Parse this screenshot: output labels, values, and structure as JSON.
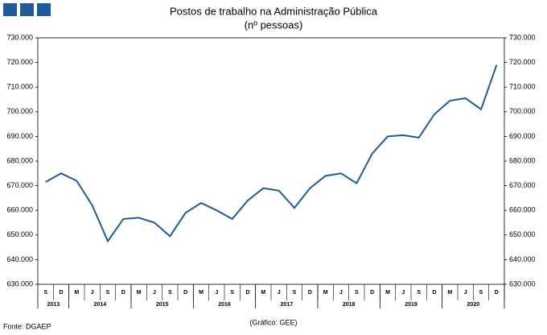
{
  "chart_data": {
    "type": "line",
    "title": "Postos de trabalho na Administração Pública",
    "subtitle": "(nº pessoas)",
    "categories": [
      "S",
      "D",
      "M",
      "J",
      "S",
      "D",
      "M",
      "J",
      "S",
      "D",
      "M",
      "J",
      "S",
      "D",
      "M",
      "J",
      "S",
      "D",
      "M",
      "J",
      "S",
      "D",
      "M",
      "J",
      "S",
      "D",
      "M",
      "J",
      "S",
      "D"
    ],
    "years": [
      "2013",
      "2014",
      "2015",
      "2016",
      "2017",
      "2018",
      "2019",
      "2020"
    ],
    "series": [
      {
        "name": "Postos de trabalho",
        "color": "#1f5c99",
        "values": [
          671500,
          675000,
          672000,
          662000,
          647500,
          656500,
          657000,
          655000,
          649500,
          659000,
          663000,
          660000,
          656500,
          664000,
          669000,
          668000,
          661000,
          669000,
          674000,
          675000,
          671000,
          683000,
          690000,
          690500,
          689500,
          699000,
          704500,
          705500,
          701000,
          719000
        ]
      }
    ],
    "ylim": [
      630000,
      730000
    ],
    "yticks": [
      {
        "value": 630000,
        "label": "630.000"
      },
      {
        "value": 640000,
        "label": "640.000"
      },
      {
        "value": 650000,
        "label": "650.000"
      },
      {
        "value": 660000,
        "label": "660.000"
      },
      {
        "value": 670000,
        "label": "670.000"
      },
      {
        "value": 680000,
        "label": "680.000"
      },
      {
        "value": 690000,
        "label": "690.000"
      },
      {
        "value": 700000,
        "label": "700.000"
      },
      {
        "value": 710000,
        "label": "710.000"
      },
      {
        "value": 720000,
        "label": "720.000"
      },
      {
        "value": 730000,
        "label": "730.000"
      }
    ],
    "source": "Fonte: DGAEP",
    "credit": "(Gráfico: GEE)"
  }
}
